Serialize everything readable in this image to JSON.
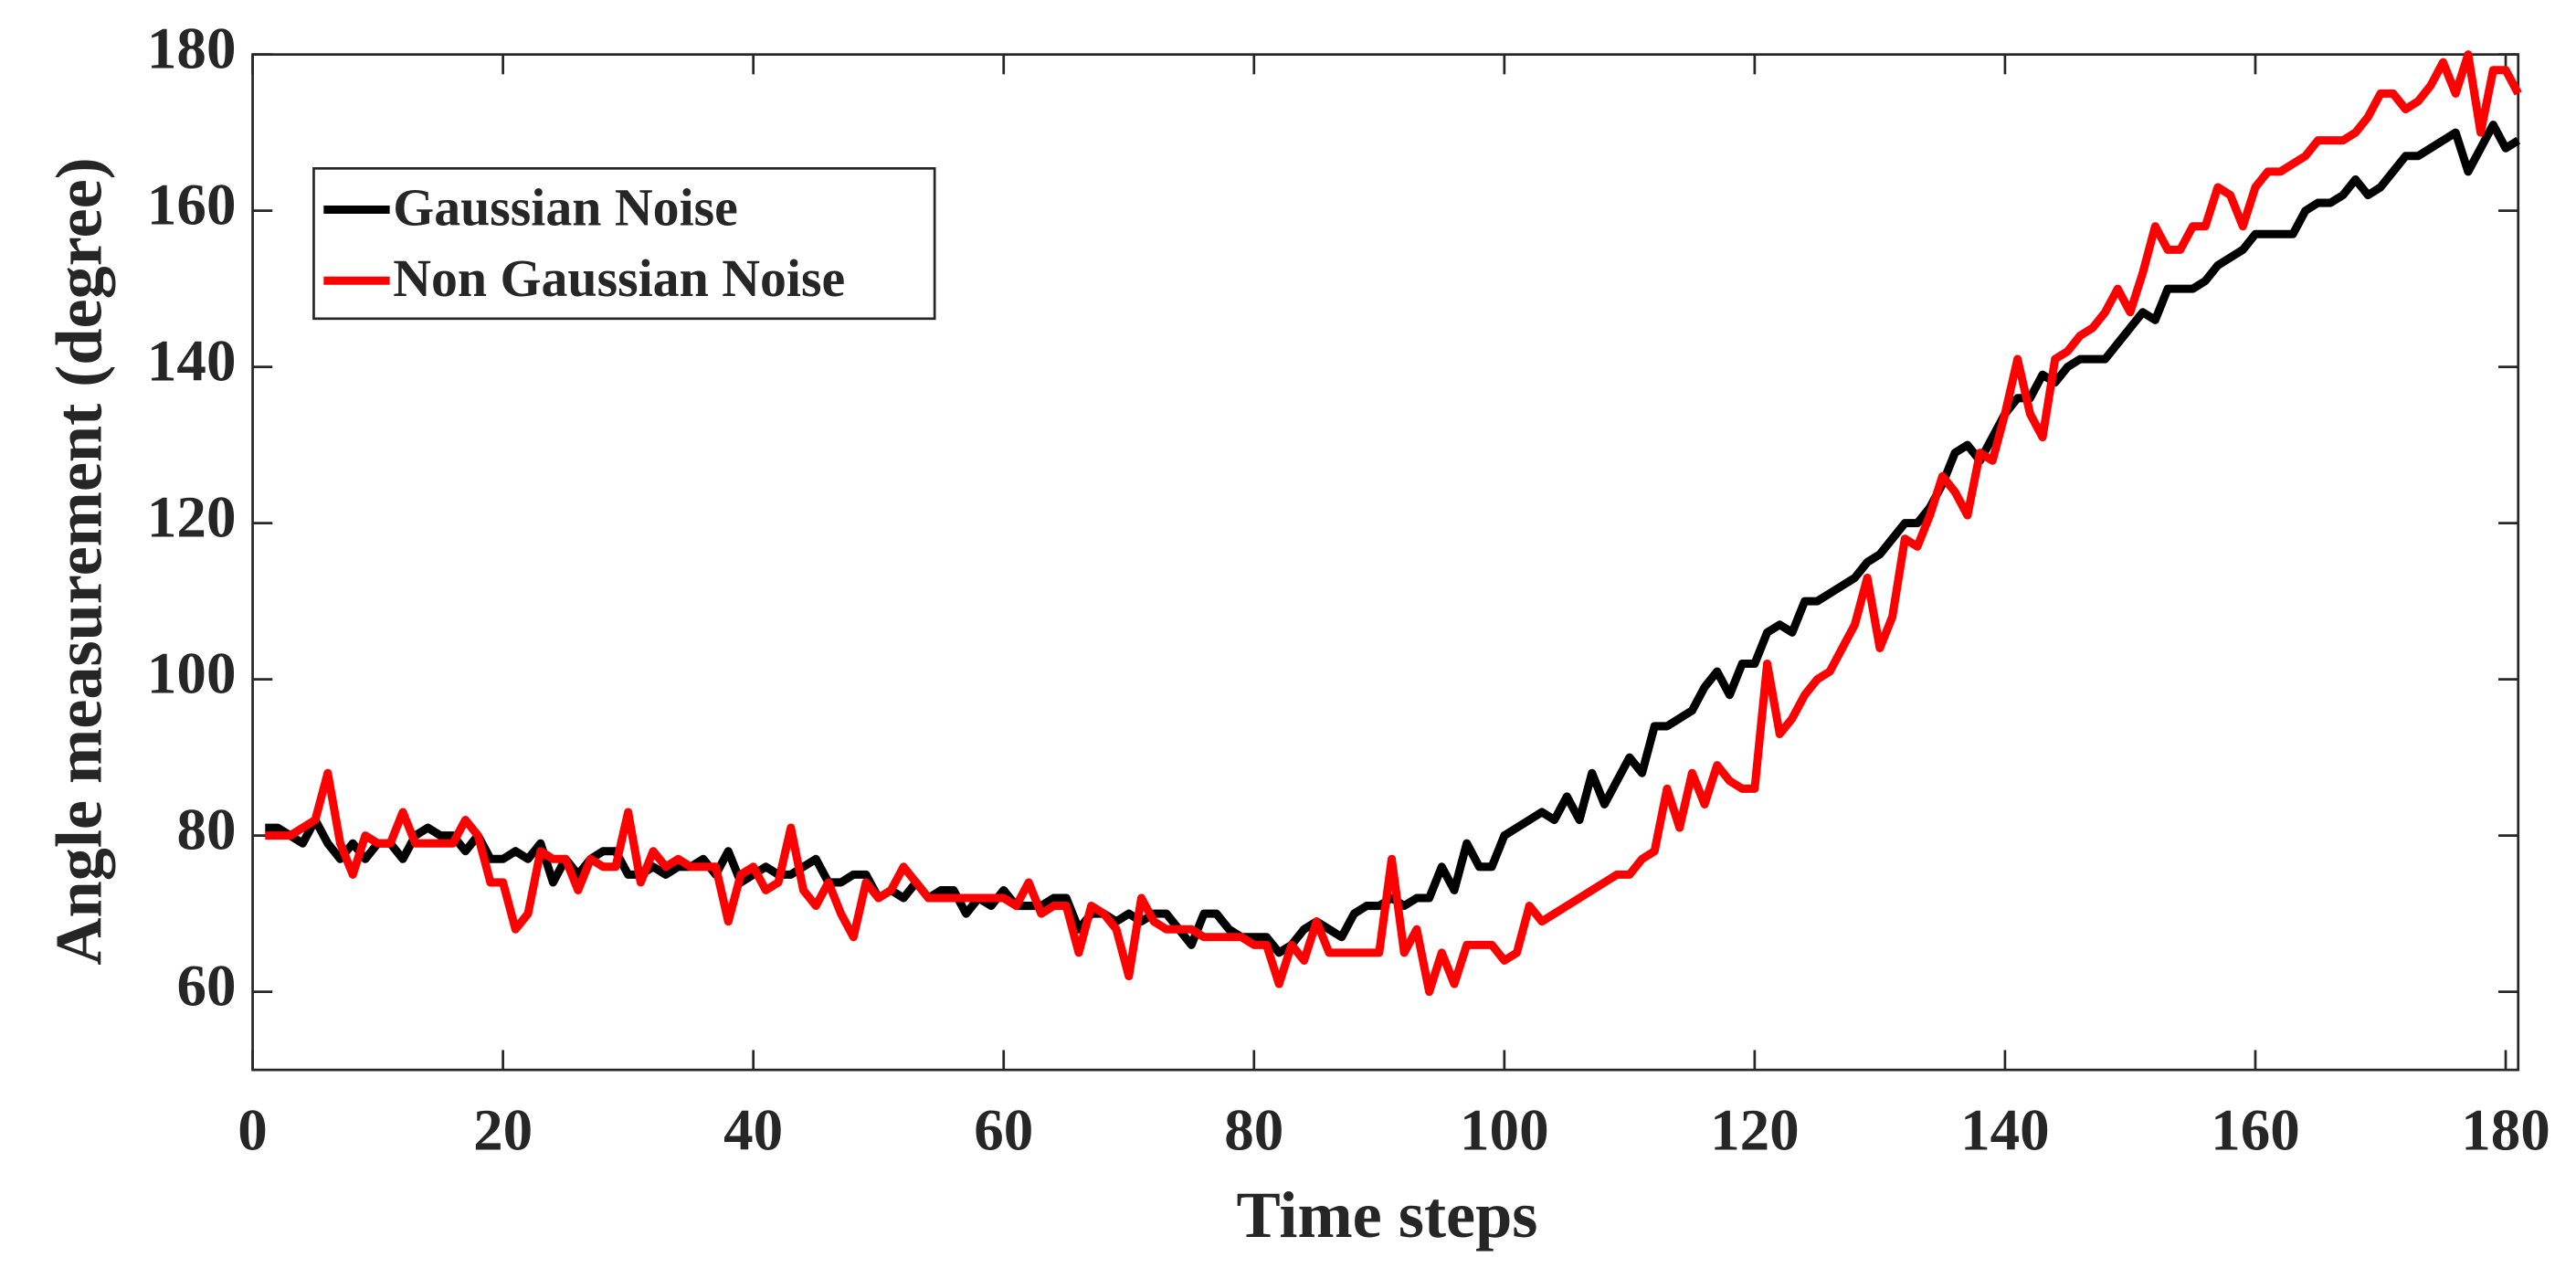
{
  "chart_data": {
    "type": "line",
    "xlabel": "Time steps",
    "ylabel": "Angle measurement (degree)",
    "x": [
      1,
      2,
      3,
      4,
      5,
      6,
      7,
      8,
      9,
      10,
      11,
      12,
      13,
      14,
      15,
      16,
      17,
      18,
      19,
      20,
      21,
      22,
      23,
      24,
      25,
      26,
      27,
      28,
      29,
      30,
      31,
      32,
      33,
      34,
      35,
      36,
      37,
      38,
      39,
      40,
      41,
      42,
      43,
      44,
      45,
      46,
      47,
      48,
      49,
      50,
      51,
      52,
      53,
      54,
      55,
      56,
      57,
      58,
      59,
      60,
      61,
      62,
      63,
      64,
      65,
      66,
      67,
      68,
      69,
      70,
      71,
      72,
      73,
      74,
      75,
      76,
      77,
      78,
      79,
      80,
      81,
      82,
      83,
      84,
      85,
      86,
      87,
      88,
      89,
      90,
      91,
      92,
      93,
      94,
      95,
      96,
      97,
      98,
      99,
      100,
      101,
      102,
      103,
      104,
      105,
      106,
      107,
      108,
      109,
      110,
      111,
      112,
      113,
      114,
      115,
      116,
      117,
      118,
      119,
      120,
      121,
      122,
      123,
      124,
      125,
      126,
      127,
      128,
      129,
      130,
      131,
      132,
      133,
      134,
      135,
      136,
      137,
      138,
      139,
      140,
      141,
      142,
      143,
      144,
      145,
      146,
      147,
      148,
      149,
      150,
      151,
      152,
      153,
      154,
      155,
      156,
      157,
      158,
      159,
      160,
      161,
      162,
      163,
      164,
      165,
      166,
      167,
      168,
      169,
      170,
      171,
      172,
      173,
      174,
      175,
      176,
      177,
      178,
      179,
      180,
      181
    ],
    "series": [
      {
        "name": "Gaussian Noise",
        "color": "#000000",
        "values": [
          81,
          81,
          80,
          79,
          82,
          79,
          77,
          79,
          77,
          79,
          79,
          77,
          80,
          81,
          80,
          80,
          78,
          80,
          77,
          77,
          78,
          77,
          79,
          74,
          77,
          75,
          77,
          78,
          78,
          75,
          75,
          76,
          75,
          76,
          76,
          77,
          75,
          78,
          74,
          75,
          76,
          75,
          75,
          76,
          77,
          74,
          74,
          75,
          75,
          72,
          73,
          72,
          74,
          72,
          73,
          73,
          70,
          72,
          71,
          73,
          71,
          71,
          71,
          72,
          72,
          68,
          70,
          70,
          69,
          70,
          69,
          70,
          70,
          68,
          66,
          70,
          70,
          68,
          67,
          67,
          67,
          65,
          66,
          68,
          69,
          68,
          67,
          70,
          71,
          71,
          72,
          71,
          72,
          72,
          76,
          73,
          79,
          76,
          76,
          80,
          81,
          82,
          83,
          82,
          85,
          82,
          88,
          84,
          87,
          90,
          88,
          94,
          94,
          95,
          96,
          99,
          101,
          98,
          102,
          102,
          106,
          107,
          106,
          110,
          110,
          111,
          112,
          113,
          115,
          116,
          118,
          120,
          120,
          122,
          125,
          129,
          130,
          128,
          131,
          134,
          136,
          136,
          139,
          138,
          140,
          141,
          141,
          141,
          143,
          145,
          147,
          146,
          150,
          150,
          150,
          151,
          153,
          154,
          155,
          157,
          157,
          157,
          157,
          160,
          161,
          161,
          162,
          164,
          162,
          163,
          165,
          167,
          167,
          168,
          169,
          170,
          165,
          168,
          171,
          168,
          169
        ]
      },
      {
        "name": "Non Gaussian Noise",
        "color": "#ff0000",
        "values": [
          80,
          80,
          80,
          81,
          82,
          88,
          79,
          75,
          80,
          79,
          79,
          83,
          79,
          79,
          79,
          79,
          82,
          80,
          74,
          74,
          68,
          70,
          78,
          77,
          77,
          73,
          77,
          76,
          76,
          83,
          74,
          78,
          76,
          77,
          76,
          76,
          76,
          69,
          75,
          76,
          73,
          74,
          81,
          73,
          71,
          74,
          70,
          67,
          74,
          72,
          73,
          76,
          74,
          72,
          72,
          72,
          72,
          72,
          72,
          72,
          71,
          74,
          70,
          71,
          71,
          65,
          71,
          70,
          68,
          62,
          72,
          69,
          68,
          68,
          68,
          67,
          67,
          67,
          67,
          66,
          66,
          61,
          66,
          64,
          69,
          65,
          65,
          65,
          65,
          65,
          77,
          65,
          68,
          60,
          65,
          61,
          66,
          66,
          66,
          64,
          65,
          71,
          69,
          70,
          71,
          72,
          73,
          74,
          75,
          75,
          77,
          78,
          86,
          81,
          88,
          84,
          89,
          87,
          86,
          86,
          102,
          93,
          95,
          98,
          100,
          101,
          104,
          107,
          113,
          104,
          108,
          118,
          117,
          121,
          126,
          124,
          121,
          129,
          128,
          134,
          141,
          134,
          131,
          141,
          142,
          144,
          145,
          147,
          150,
          147,
          152,
          158,
          155,
          155,
          158,
          158,
          163,
          162,
          158,
          163,
          165,
          165,
          166,
          167,
          169,
          169,
          169,
          170,
          172,
          175,
          175,
          173,
          174,
          176,
          179,
          175,
          180,
          170,
          178,
          178,
          175
        ]
      }
    ],
    "xlim": [
      0,
      181
    ],
    "xticks": [
      0,
      20,
      40,
      60,
      80,
      100,
      120,
      140,
      160,
      180
    ],
    "ylim": [
      50,
      180
    ],
    "yticks": [
      60,
      80,
      100,
      120,
      140,
      160,
      180
    ],
    "legend": "upper left",
    "grid": false
  }
}
